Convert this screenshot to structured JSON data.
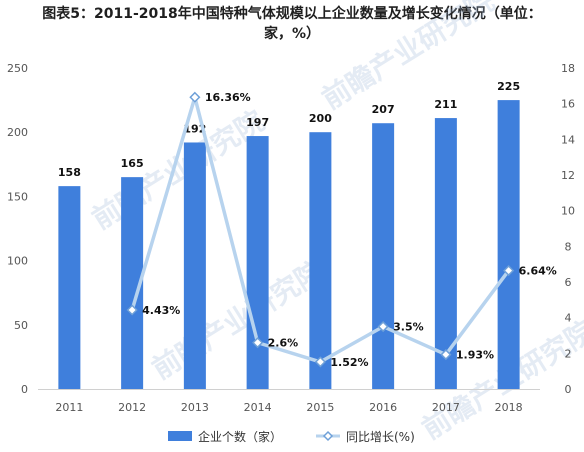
{
  "title": {
    "line1": "图表5：2011-2018年中国特种气体规模以上企业数量及增长变化情况（单位：",
    "line2": "家，%）"
  },
  "watermark": "前瞻产业研究院",
  "colors": {
    "bar": "#3f7fdc",
    "line": "#b7d3ee",
    "marker_fill": "#ffffff",
    "marker_stroke": "#6ea0d8"
  },
  "chart_data": {
    "type": "bar",
    "categories": [
      "2011",
      "2012",
      "2013",
      "2014",
      "2015",
      "2016",
      "2017",
      "2018"
    ],
    "series": [
      {
        "name": "企业个数（家）",
        "type": "bar",
        "axis": "left",
        "values": [
          158,
          165,
          192,
          197,
          200,
          207,
          211,
          225
        ],
        "labels": [
          "158",
          "165",
          "192",
          "197",
          "200",
          "207",
          "211",
          "225"
        ]
      },
      {
        "name": "同比增长(%)",
        "type": "line",
        "axis": "right",
        "values": [
          null,
          4.43,
          16.36,
          2.6,
          1.52,
          3.5,
          1.93,
          6.64
        ],
        "labels": [
          "",
          "4.43%",
          "16.36%",
          "2.6%",
          "1.52%",
          "3.5%",
          "1.93%",
          "6.64%"
        ]
      }
    ],
    "y_left": {
      "min": 0,
      "max": 250,
      "ticks": [
        "0",
        "50",
        "100",
        "150",
        "200",
        "250"
      ]
    },
    "y_right": {
      "min": 0,
      "max": 18,
      "ticks": [
        "0",
        "2",
        "4",
        "6",
        "8",
        "10",
        "12",
        "14",
        "16",
        "18"
      ]
    },
    "legend": {
      "placement": "bottom"
    }
  }
}
